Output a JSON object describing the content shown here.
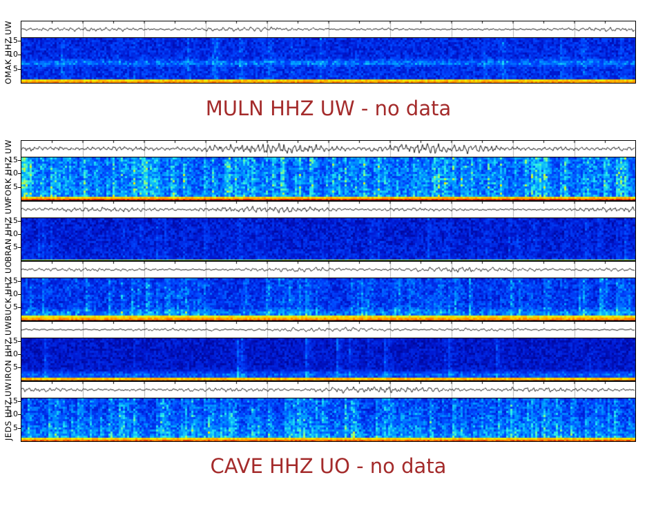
{
  "figure": {
    "background_color": "#ffffff",
    "title_color": "#a42b2b",
    "axis_color": "#000000"
  },
  "titles": [
    {
      "text": "MULN HHZ UW - no data"
    },
    {
      "text": "CAVE HHZ UO - no data"
    }
  ],
  "chart_data": {
    "type": "heatmap",
    "description": "Stack of seismic station panels; each panel shows a black seismogram waveform strip above a jet-colormap spectrogram (frequency 0-17 Hz on y-axis). Two stations report no data and are shown as dark-red text lines.",
    "y_axis": {
      "ticks": [
        15,
        10,
        5
      ],
      "unit": "Hz",
      "range": [
        0,
        17
      ]
    },
    "no_data_stations": [
      "MULN HHZ UW",
      "CAVE HHZ UO"
    ],
    "panels": [
      {
        "station": "OMAK HHZ UW",
        "yticks": [
          15,
          10,
          5
        ],
        "waveform": {
          "amplitude": 3.2,
          "frequency": 0.1,
          "seed": 11
        },
        "spectrogram": {
          "character": "dark blue background, faint cyan horizontal band near 7 Hz, thin yellow-orange band at 0-1 Hz",
          "base": 0.22,
          "noise": 0.13,
          "streak_density": 0.08,
          "streak_strength": 0.16,
          "band_frac": 0.55,
          "band_strength": 0.26,
          "band_width": 0.05,
          "gradient": 0.05,
          "left_patch": 0,
          "bottom_rows": [
            0.86,
            0.91
          ],
          "seed": 21
        }
      },
      {
        "station": "FORK HHZ UW",
        "yticks": [
          15,
          10,
          5
        ],
        "waveform": {
          "amplitude": 7.5,
          "frequency": 0.13,
          "seed": 12
        },
        "spectrogram": {
          "character": "bright blue with dense cyan vertical streaks, red band with yellow fringe at 0-1 Hz",
          "base": 0.36,
          "noise": 0.15,
          "streak_density": 0.45,
          "streak_strength": 0.26,
          "band_frac": 0,
          "band_strength": 0,
          "band_width": 0.05,
          "gradient": 0.05,
          "left_patch": 0.25,
          "bottom_rows": [
            0.87,
            0.98
          ],
          "seed": 22
        }
      },
      {
        "station": "BRAN HHZ UW",
        "yticks": [
          15,
          10,
          5
        ],
        "waveform": {
          "amplitude": 4.5,
          "frequency": 0.12,
          "seed": 13
        },
        "spectrogram": {
          "character": "uniform dark blue, thin yellow-green line at 0 Hz",
          "base": 0.17,
          "noise": 0.12,
          "streak_density": 0.1,
          "streak_strength": 0.12,
          "band_frac": 0,
          "band_strength": 0,
          "band_width": 0.05,
          "gradient": 0.04,
          "left_patch": 0,
          "bottom_rows": [
            0.78
          ],
          "seed": 23
        }
      },
      {
        "station": "BUCK HHZ UO",
        "yticks": [
          15,
          10,
          5
        ],
        "waveform": {
          "amplitude": 4.0,
          "frequency": 0.09,
          "seed": 14
        },
        "spectrogram": {
          "character": "medium blue with cyan vertical streaks, cyan band near 2 Hz, yellow-orange-red band at 0 Hz",
          "base": 0.25,
          "noise": 0.14,
          "streak_density": 0.3,
          "streak_strength": 0.2,
          "band_frac": 0.82,
          "band_strength": 0.2,
          "band_width": 0.07,
          "gradient": 0.03,
          "left_patch": 0,
          "bottom_rows": [
            0.84,
            0.89,
            0.97
          ],
          "seed": 24
        }
      },
      {
        "station": "IRON HHZ UW",
        "yticks": [
          15,
          10,
          5
        ],
        "waveform": {
          "amplitude": 3.0,
          "frequency": 0.08,
          "seed": 15
        },
        "spectrogram": {
          "character": "very dark blue, speckled cyan band near 1-2 Hz, thin yellow-orange line at 0 Hz",
          "base": 0.14,
          "noise": 0.1,
          "streak_density": 0.05,
          "streak_strength": 0.22,
          "band_frac": 0.86,
          "band_strength": 0.3,
          "band_width": 0.06,
          "gradient": 0.02,
          "left_patch": 0,
          "bottom_rows": [
            0.87,
            0.92
          ],
          "seed": 25
        }
      },
      {
        "station": "JEDS HHZ UW",
        "yticks": [
          15,
          10,
          5
        ],
        "waveform": {
          "amplitude": 4.8,
          "frequency": 0.1,
          "seed": 16
        },
        "spectrogram": {
          "character": "medium blue with many cyan streaks brightening toward low frequencies, yellow-red band at 0 Hz",
          "base": 0.28,
          "noise": 0.15,
          "streak_density": 0.42,
          "streak_strength": 0.24,
          "band_frac": 0,
          "band_strength": 0,
          "band_width": 0.05,
          "gradient": 0.18,
          "left_patch": 0,
          "bottom_rows": [
            0.86,
            0.95
          ],
          "seed": 26
        }
      }
    ]
  }
}
